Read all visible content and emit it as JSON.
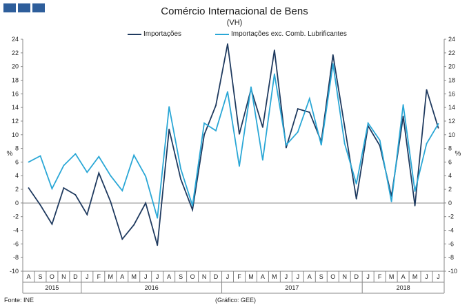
{
  "header": {
    "title": "Comércio Internacional de Bens",
    "subtitle": "(VH)"
  },
  "footer": {
    "source": "Fonte: INE",
    "credit": "(Gráfico: GEE)"
  },
  "colors": {
    "brand": "#2e5e9b",
    "importacoes": "#1f3a5f",
    "importacoes_exc": "#2aa7d6",
    "axis": "#888888",
    "tick_text": "#222222"
  },
  "chart_data": {
    "type": "line",
    "title": "Comércio Internacional de Bens",
    "subtitle": "(VH)",
    "ylabel_left": "%",
    "ylabel_right": "%",
    "ylim": [
      -10,
      24
    ],
    "yticks": [
      -10,
      -8,
      -6,
      -4,
      -2,
      0,
      2,
      4,
      6,
      8,
      10,
      12,
      14,
      16,
      18,
      20,
      22,
      24
    ],
    "grid": false,
    "legend_position": "top",
    "x": [
      "A",
      "S",
      "O",
      "N",
      "D",
      "J",
      "F",
      "M",
      "A",
      "M",
      "J",
      "J",
      "A",
      "S",
      "O",
      "N",
      "D",
      "J",
      "F",
      "M",
      "A",
      "M",
      "J",
      "J",
      "A",
      "S",
      "O",
      "N",
      "D",
      "J",
      "F",
      "M",
      "A",
      "M",
      "J",
      "J"
    ],
    "years": [
      {
        "label": "2015",
        "start": 0,
        "end": 4
      },
      {
        "label": "2016",
        "start": 5,
        "end": 16
      },
      {
        "label": "2017",
        "start": 17,
        "end": 28
      },
      {
        "label": "2018",
        "start": 29,
        "end": 35
      }
    ],
    "series": [
      {
        "name": "Importações",
        "color": "#1f3a5f",
        "values": [
          2.2,
          -0.3,
          -3.1,
          2.2,
          1.2,
          -1.7,
          4.4,
          0.2,
          -5.3,
          -3.2,
          0.0,
          -6.2,
          10.8,
          3.5,
          -1.0,
          10.0,
          14.3,
          23.3,
          10.1,
          16.7,
          11.1,
          22.4,
          8.1,
          13.8,
          13.3,
          9.0,
          21.7,
          11.2,
          0.6,
          11.3,
          8.4,
          1.0,
          12.7,
          -0.4,
          16.6,
          11.0
        ]
      },
      {
        "name": "Importações exc. Comb. Lubrificantes",
        "color": "#2aa7d6",
        "values": [
          6.0,
          6.9,
          2.1,
          5.5,
          7.2,
          4.5,
          6.8,
          4.0,
          1.8,
          7.0,
          3.9,
          -2.2,
          14.1,
          5.0,
          -0.4,
          11.7,
          10.6,
          16.3,
          5.4,
          17.0,
          6.3,
          18.9,
          8.5,
          10.4,
          15.3,
          8.5,
          20.4,
          8.7,
          2.8,
          11.7,
          9.2,
          0.2,
          14.4,
          1.7,
          8.7,
          11.6
        ]
      }
    ]
  }
}
